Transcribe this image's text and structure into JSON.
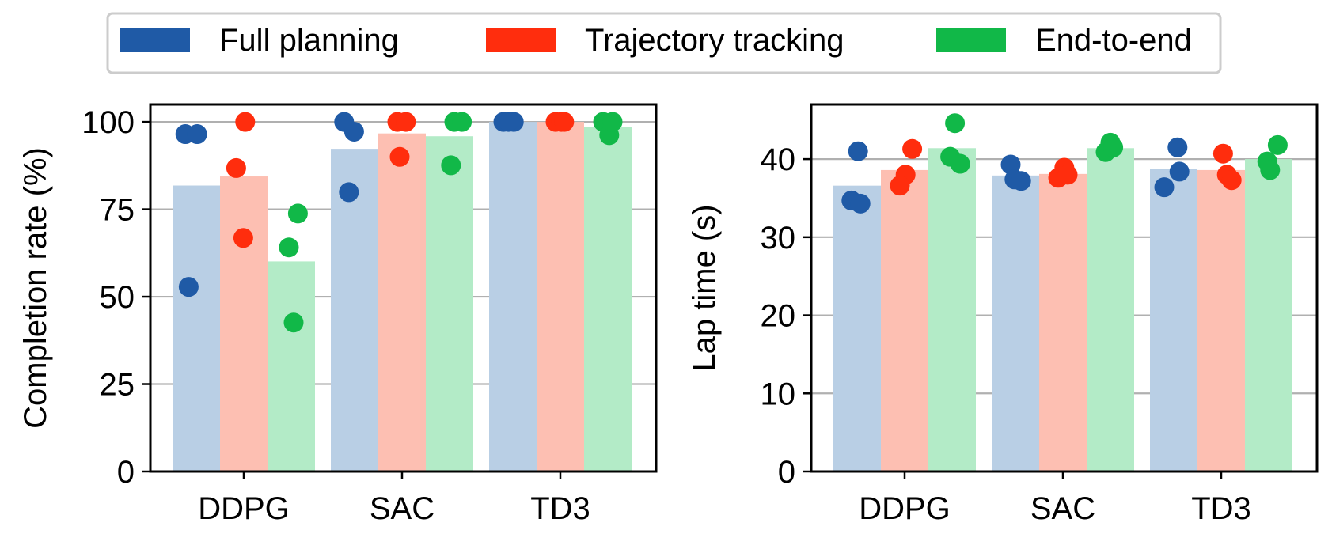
{
  "legend": {
    "position": "top-center",
    "entries": [
      {
        "label": "Full planning",
        "color": "#1f5aa6"
      },
      {
        "label": "Trajectory tracking",
        "color": "#ff2d0d"
      },
      {
        "label": "End-to-end",
        "color": "#11b848"
      }
    ]
  },
  "bar_colors": [
    "#b9cfe5",
    "#fdbfb2",
    "#b3ebc7"
  ],
  "chart_data": [
    {
      "type": "bar",
      "title": "",
      "xlabel": "",
      "ylabel": "Completion rate (%)",
      "ylim": [
        0,
        105
      ],
      "yticks": [
        0,
        25,
        50,
        75,
        100
      ],
      "grid": "y",
      "categories": [
        "DDPG",
        "SAC",
        "TD3"
      ],
      "series": [
        {
          "name": "Full planning",
          "values": [
            81.8,
            92.3,
            100
          ],
          "points": [
            [
              96.5,
              96.5,
              52.8
            ],
            [
              100,
              97.2,
              79.9
            ],
            [
              100,
              100,
              100
            ]
          ],
          "offsets": [
            [
              -0.23,
              0.02,
              -0.16
            ],
            [
              -0.22,
              -0.01,
              -0.12
            ],
            [
              -0.2,
              0.02,
              -0.09
            ]
          ]
        },
        {
          "name": "Trajectory tracking",
          "values": [
            84.4,
            96.7,
            100
          ],
          "points": [
            [
              100,
              86.8,
              66.8
            ],
            [
              100,
              90,
              100
            ],
            [
              100,
              100,
              100
            ]
          ],
          "offsets": [
            [
              0.03,
              -0.16,
              -0.01
            ],
            [
              -0.1,
              -0.05,
              0.08
            ],
            [
              -0.1,
              0.02,
              0.08
            ]
          ]
        },
        {
          "name": "End-to-end",
          "values": [
            60.1,
            95.9,
            98.6
          ],
          "points": [
            [
              73.8,
              64.1,
              42.6
            ],
            [
              100,
              100,
              87.6
            ],
            [
              100,
              96.2,
              100
            ]
          ],
          "offsets": [
            [
              0.14,
              -0.05,
              0.05
            ],
            [
              0.1,
              0.26,
              0.03
            ],
            [
              -0.1,
              0.03,
              0.1
            ]
          ]
        }
      ]
    },
    {
      "type": "bar",
      "title": "",
      "xlabel": "",
      "ylabel": "Lap time (s)",
      "ylim": [
        0,
        47
      ],
      "yticks": [
        0,
        10,
        20,
        30,
        40
      ],
      "grid": "y",
      "categories": [
        "DDPG",
        "SAC",
        "TD3"
      ],
      "series": [
        {
          "name": "Full planning",
          "values": [
            36.6,
            37.9,
            38.7
          ],
          "points": [
            [
              41.0,
              34.7,
              34.3
            ],
            [
              39.3,
              37.4,
              37.2
            ],
            [
              41.5,
              36.4,
              38.4
            ]
          ],
          "offsets": [
            [
              0.02,
              -0.12,
              0.07
            ],
            [
              -0.1,
              -0.02,
              0.12
            ],
            [
              0.08,
              -0.2,
              0.12
            ]
          ]
        },
        {
          "name": "Trajectory tracking",
          "values": [
            38.6,
            38.1,
            38.6
          ],
          "points": [
            [
              41.3,
              38.0,
              36.6
            ],
            [
              37.6,
              38.9,
              38.0
            ],
            [
              40.7,
              38.0,
              37.3
            ]
          ],
          "offsets": [
            [
              0.16,
              0.02,
              -0.1
            ],
            [
              -0.1,
              0.03,
              0.1
            ],
            [
              0.04,
              0.12,
              0.22
            ]
          ]
        },
        {
          "name": "End-to-end",
          "values": [
            41.4,
            41.4,
            40.0
          ],
          "points": [
            [
              44.6,
              40.3,
              39.4
            ],
            [
              40.9,
              42.1,
              41.5
            ],
            [
              41.8,
              39.7,
              38.6
            ]
          ],
          "offsets": [
            [
              0.06,
              -0.04,
              0.17
            ],
            [
              -0.1,
              0.0,
              0.06
            ],
            [
              0.19,
              -0.03,
              0.03
            ]
          ]
        }
      ]
    }
  ]
}
